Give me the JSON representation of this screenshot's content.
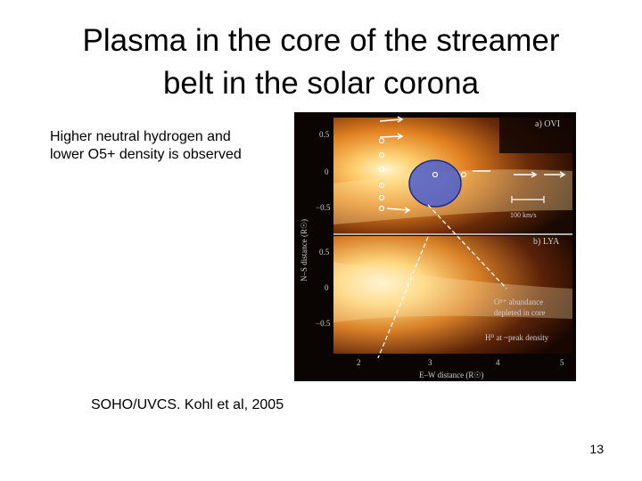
{
  "slide": {
    "title_line1": "Plasma in the core of the streamer",
    "title_line2": "belt in the solar corona",
    "description": "Higher neutral hydrogen and lower O5+ density is observed",
    "caption": "SOHO/UVCS.  Kohl et al, 2005",
    "page_number": "13"
  },
  "figure": {
    "panel_a_label": "a) OVI",
    "panel_b_label": "b) LYA",
    "scale_label": "100 km/s",
    "annotation_line1": "O⁵⁺ abundance",
    "annotation_line2": "depleted in core",
    "annotation_line3": "H⁰ at ~peak density",
    "y_axis_label": "N–S distance (R☉)",
    "x_axis_label": "E–W distance (R☉)",
    "y_ticks_a": [
      "0.5",
      "0",
      "−0.5"
    ],
    "y_ticks_b": [
      "0.5",
      "0",
      "−0.5"
    ],
    "x_ticks": [
      "2",
      "3",
      "4",
      "5"
    ],
    "highlight_color": "#4a5fd0"
  }
}
